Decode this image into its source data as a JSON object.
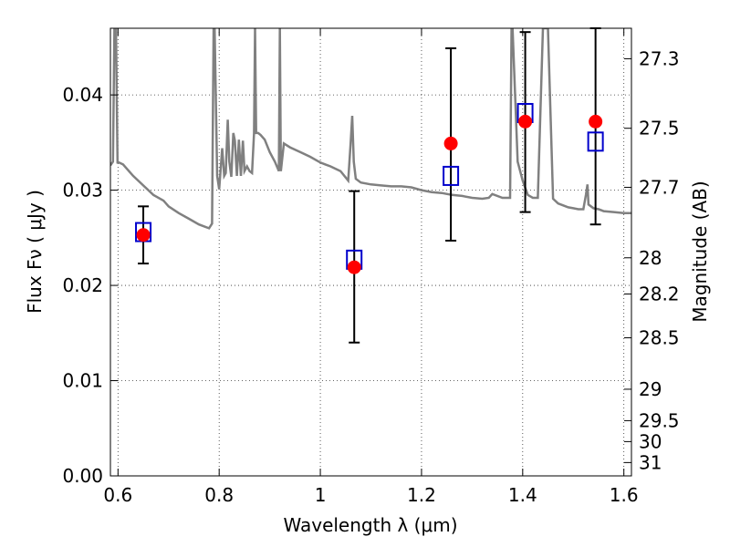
{
  "chart_data": {
    "type": "scatter",
    "xlabel": "Wavelength  λ (μm)",
    "ylabel": "Flux  Fν ( μJy )",
    "ylabel_right": "Magnitude (AB)",
    "xlim": [
      0.585,
      1.615
    ],
    "ylim": [
      0.0,
      0.047
    ],
    "grid": true,
    "x_ticks": [
      0.6,
      0.8,
      1.0,
      1.2,
      1.4,
      1.6
    ],
    "x_tick_labels": [
      "0.6",
      "0.8",
      "1",
      "1.2",
      "1.4",
      "1.6"
    ],
    "y_ticks": [
      0.0,
      0.01,
      0.02,
      0.03,
      0.04
    ],
    "y_tick_labels": [
      "0.00",
      "0.01",
      "0.02",
      "0.03",
      "0.04"
    ],
    "right_ticks": [
      {
        "label": "27.3",
        "flux": 0.0438
      },
      {
        "label": "27.5",
        "flux": 0.0365
      },
      {
        "label": "27.7",
        "flux": 0.0303
      },
      {
        "label": "28",
        "flux": 0.0229
      },
      {
        "label": "28.2",
        "flux": 0.0191
      },
      {
        "label": "28.5",
        "flux": 0.0145
      },
      {
        "label": "29",
        "flux": 0.0091
      },
      {
        "label": "29.5",
        "flux": 0.0058
      },
      {
        "label": "30",
        "flux": 0.0036
      },
      {
        "label": "31",
        "flux": 0.0014
      }
    ],
    "observed": {
      "x": [
        0.65,
        1.067,
        1.258,
        1.405,
        1.544
      ],
      "y": [
        0.0253,
        0.0219,
        0.0349,
        0.0372,
        0.0372
      ],
      "yerr_low": [
        0.0223,
        0.014,
        0.0247,
        0.0277,
        0.0264
      ],
      "yerr_high": [
        0.0283,
        0.0299,
        0.0449,
        0.0466,
        0.047
      ],
      "color": "#ff0000"
    },
    "model_points": {
      "x": [
        0.65,
        1.067,
        1.258,
        1.405,
        1.544
      ],
      "y": [
        0.0256,
        0.0227,
        0.0315,
        0.0381,
        0.0351
      ],
      "color": "#0000cc"
    },
    "model_spectrum": {
      "color": "#808080",
      "x": [
        0.585,
        0.59,
        0.593,
        0.596,
        0.599,
        0.602,
        0.61,
        0.63,
        0.65,
        0.67,
        0.69,
        0.7,
        0.72,
        0.74,
        0.76,
        0.78,
        0.786,
        0.789,
        0.791,
        0.796,
        0.8,
        0.806,
        0.81,
        0.813,
        0.817,
        0.82,
        0.824,
        0.828,
        0.831,
        0.835,
        0.839,
        0.843,
        0.847,
        0.85,
        0.855,
        0.86,
        0.865,
        0.869,
        0.871,
        0.873,
        0.877,
        0.882,
        0.89,
        0.9,
        0.91,
        0.918,
        0.92,
        0.922,
        0.928,
        0.94,
        0.96,
        0.98,
        1.0,
        1.01,
        1.02,
        1.04,
        1.055,
        1.06,
        1.063,
        1.066,
        1.07,
        1.08,
        1.1,
        1.12,
        1.14,
        1.16,
        1.18,
        1.2,
        1.22,
        1.24,
        1.26,
        1.28,
        1.3,
        1.32,
        1.333,
        1.34,
        1.36,
        1.375,
        1.378,
        1.38,
        1.39,
        1.4,
        1.41,
        1.42,
        1.43,
        1.44,
        1.45,
        1.46,
        1.47,
        1.48,
        1.49,
        1.5,
        1.51,
        1.52,
        1.525,
        1.528,
        1.53,
        1.54,
        1.55,
        1.56,
        1.58,
        1.6,
        1.615
      ],
      "y": [
        0.0326,
        0.033,
        0.047,
        0.047,
        0.0329,
        0.0329,
        0.0327,
        0.0315,
        0.0305,
        0.0295,
        0.0289,
        0.0283,
        0.0276,
        0.027,
        0.0264,
        0.026,
        0.0265,
        0.047,
        0.047,
        0.0315,
        0.0301,
        0.0344,
        0.0315,
        0.0318,
        0.0374,
        0.033,
        0.0314,
        0.036,
        0.0352,
        0.0315,
        0.0353,
        0.0315,
        0.0352,
        0.032,
        0.0325,
        0.032,
        0.0318,
        0.036,
        0.047,
        0.036,
        0.036,
        0.0358,
        0.0353,
        0.034,
        0.033,
        0.032,
        0.047,
        0.032,
        0.0349,
        0.0345,
        0.034,
        0.0335,
        0.0329,
        0.0327,
        0.0325,
        0.032,
        0.031,
        0.035,
        0.0378,
        0.033,
        0.0312,
        0.0308,
        0.0306,
        0.0305,
        0.0304,
        0.0304,
        0.0303,
        0.03,
        0.0298,
        0.0297,
        0.0295,
        0.0294,
        0.0292,
        0.0291,
        0.0292,
        0.0296,
        0.0292,
        0.0292,
        0.047,
        0.047,
        0.033,
        0.031,
        0.0295,
        0.0292,
        0.0292,
        0.047,
        0.047,
        0.0291,
        0.0286,
        0.0284,
        0.0282,
        0.0281,
        0.028,
        0.028,
        0.0295,
        0.0306,
        0.0285,
        0.0281,
        0.028,
        0.0278,
        0.0277,
        0.0276,
        0.0276
      ]
    }
  }
}
